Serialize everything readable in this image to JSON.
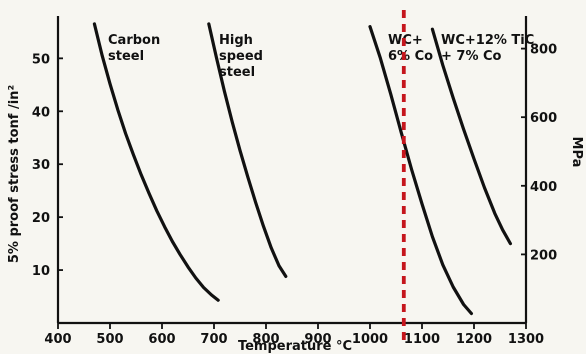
{
  "chart_data": {
    "type": "line",
    "title": "",
    "xlabel": "Temperature °C",
    "ylabel": "5% proof stress tonf /in²",
    "y2label": "MPa",
    "xlim": [
      400,
      1300
    ],
    "ylim": [
      0,
      58
    ],
    "y2lim": [
      0,
      895
    ],
    "x_ticks": [
      400,
      500,
      600,
      700,
      800,
      900,
      1000,
      1100,
      1200,
      1300
    ],
    "y_ticks": [
      10,
      20,
      30,
      40,
      50
    ],
    "y2_ticks": [
      200,
      400,
      600,
      800
    ],
    "grid": false,
    "series": [
      {
        "name": "Carbon steel",
        "label_lines": [
          "Carbon",
          "steel"
        ],
        "points": [
          [
            470,
            56.5
          ],
          [
            485,
            50.5
          ],
          [
            500,
            45.2
          ],
          [
            515,
            40.3
          ],
          [
            530,
            35.8
          ],
          [
            545,
            31.8
          ],
          [
            560,
            28.0
          ],
          [
            575,
            24.5
          ],
          [
            590,
            21.2
          ],
          [
            605,
            18.2
          ],
          [
            620,
            15.4
          ],
          [
            635,
            12.9
          ],
          [
            650,
            10.6
          ],
          [
            665,
            8.5
          ],
          [
            680,
            6.7
          ],
          [
            695,
            5.3
          ],
          [
            708,
            4.3
          ]
        ]
      },
      {
        "name": "High speed steel",
        "label_lines": [
          "High",
          "speed",
          "steel"
        ],
        "points": [
          [
            690,
            56.5
          ],
          [
            705,
            50.0
          ],
          [
            720,
            43.8
          ],
          [
            735,
            38.0
          ],
          [
            750,
            32.6
          ],
          [
            765,
            27.6
          ],
          [
            780,
            22.8
          ],
          [
            795,
            18.3
          ],
          [
            810,
            14.2
          ],
          [
            825,
            10.8
          ],
          [
            838,
            8.8
          ]
        ]
      },
      {
        "name": "WC + 6% Co",
        "label_lines": [
          "WC+",
          "6% Co"
        ],
        "points": [
          [
            1000,
            56.0
          ],
          [
            1020,
            50.0
          ],
          [
            1040,
            43.2
          ],
          [
            1060,
            36.0
          ],
          [
            1080,
            29.0
          ],
          [
            1100,
            22.5
          ],
          [
            1120,
            16.3
          ],
          [
            1140,
            11.0
          ],
          [
            1160,
            6.8
          ],
          [
            1180,
            3.5
          ],
          [
            1195,
            1.8
          ]
        ]
      },
      {
        "name": "WC + 12% TiC + 7% Co",
        "label_lines": [
          "WC+12% TiC",
          "+ 7% Co"
        ],
        "points": [
          [
            1120,
            55.5
          ],
          [
            1140,
            48.7
          ],
          [
            1160,
            42.5
          ],
          [
            1180,
            36.6
          ],
          [
            1200,
            31.0
          ],
          [
            1220,
            25.6
          ],
          [
            1240,
            20.7
          ],
          [
            1255,
            17.6
          ],
          [
            1270,
            15.0
          ]
        ]
      }
    ],
    "marker": {
      "x": 1065,
      "color": "#c5161d",
      "style": "dashed vertical line"
    }
  }
}
